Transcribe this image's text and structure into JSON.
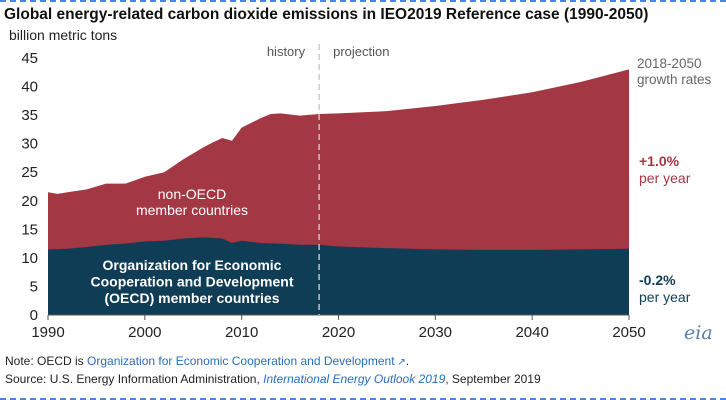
{
  "chart_data": {
    "type": "area",
    "title": "Global energy-related carbon dioxide emissions in IEO2019 Reference case (1990-2050)",
    "ylabel": "billion metric tons",
    "xlabel": "",
    "xlim": [
      1990,
      2050
    ],
    "ylim": [
      0,
      45
    ],
    "x_ticks": [
      1990,
      2000,
      2010,
      2020,
      2030,
      2040,
      2050
    ],
    "y_ticks": [
      0,
      5,
      10,
      15,
      20,
      25,
      30,
      35,
      40,
      45
    ],
    "history_label": "history",
    "projection_label": "projection",
    "divider_year": 2018,
    "growth_header": [
      "2018-2050",
      "growth rates"
    ],
    "colors": {
      "non_oecd": "#a33743",
      "oecd": "#0f3d55",
      "non_oecd_text": "#a33743",
      "oecd_text": "#0f3d55"
    },
    "series": [
      {
        "key": "oecd",
        "label_lines": [
          "Organization for Economic",
          "Cooperation and Development",
          "(OECD) member countries"
        ],
        "growth_rate": "-0.2%",
        "growth_unit": "per year",
        "points": [
          [
            1990,
            11.5
          ],
          [
            1992,
            11.6
          ],
          [
            1994,
            11.9
          ],
          [
            1996,
            12.3
          ],
          [
            1998,
            12.5
          ],
          [
            2000,
            12.9
          ],
          [
            2002,
            13.0
          ],
          [
            2004,
            13.4
          ],
          [
            2006,
            13.6
          ],
          [
            2008,
            13.4
          ],
          [
            2009,
            12.6
          ],
          [
            2010,
            13.0
          ],
          [
            2012,
            12.6
          ],
          [
            2014,
            12.5
          ],
          [
            2016,
            12.3
          ],
          [
            2018,
            12.3
          ],
          [
            2020,
            12.0
          ],
          [
            2025,
            11.7
          ],
          [
            2030,
            11.5
          ],
          [
            2035,
            11.4
          ],
          [
            2040,
            11.4
          ],
          [
            2045,
            11.5
          ],
          [
            2050,
            11.6
          ]
        ]
      },
      {
        "key": "non_oecd",
        "label_lines": [
          "non-OECD",
          "member countries"
        ],
        "growth_rate": "+1.0%",
        "growth_unit": "per year",
        "points": [
          [
            1990,
            21.5
          ],
          [
            1991,
            21.2
          ],
          [
            1992,
            21.5
          ],
          [
            1994,
            22.0
          ],
          [
            1996,
            23.0
          ],
          [
            1998,
            23.0
          ],
          [
            2000,
            24.2
          ],
          [
            2002,
            25.0
          ],
          [
            2004,
            27.3
          ],
          [
            2006,
            29.3
          ],
          [
            2007,
            30.2
          ],
          [
            2008,
            31.0
          ],
          [
            2009,
            30.5
          ],
          [
            2010,
            32.8
          ],
          [
            2012,
            34.5
          ],
          [
            2013,
            35.2
          ],
          [
            2014,
            35.3
          ],
          [
            2016,
            34.9
          ],
          [
            2018,
            35.2
          ],
          [
            2020,
            35.3
          ],
          [
            2025,
            35.7
          ],
          [
            2030,
            36.6
          ],
          [
            2035,
            37.7
          ],
          [
            2040,
            39.0
          ],
          [
            2045,
            40.8
          ],
          [
            2050,
            43.0
          ]
        ]
      }
    ]
  },
  "footer": {
    "note_prefix": "Note: OECD is ",
    "note_link": "Organization for Economic Cooperation and Development",
    "note_suffix": ".",
    "source_prefix": "Source: U.S. Energy Information Administration, ",
    "source_italic": "International Energy Outlook 2019",
    "source_suffix": ", September 2019"
  },
  "logo_text": "eia"
}
